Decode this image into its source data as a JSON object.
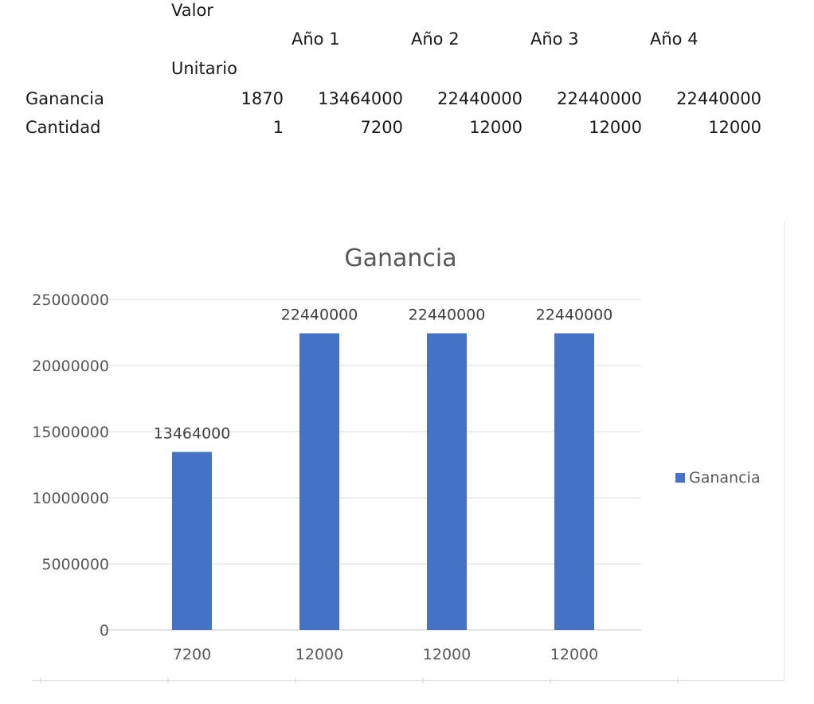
{
  "table": {
    "header_valor": "Valor",
    "header_unitario": "Unitario",
    "years": [
      "Año 1",
      "Año 2",
      "Año 3",
      "Año 4"
    ],
    "rows": [
      {
        "label": "Ganancia",
        "unit": "1870",
        "values": [
          "13464000",
          "22440000",
          "22440000",
          "22440000"
        ]
      },
      {
        "label": "Cantidad",
        "unit": "1",
        "values": [
          "7200",
          "12000",
          "12000",
          "12000"
        ]
      }
    ]
  },
  "chart_data": {
    "type": "bar",
    "title": "Ganancia",
    "categories": [
      "7200",
      "12000",
      "12000",
      "12000"
    ],
    "series": [
      {
        "name": "Ganancia",
        "values": [
          13464000,
          22440000,
          22440000,
          22440000
        ]
      }
    ],
    "data_labels": [
      "13464000",
      "22440000",
      "22440000",
      "22440000"
    ],
    "y_ticks": [
      "0",
      "5000000",
      "10000000",
      "15000000",
      "20000000",
      "25000000"
    ],
    "ylim": [
      0,
      25000000
    ],
    "grid": true,
    "legend_position": "right",
    "bar_color": "#4472C4"
  }
}
